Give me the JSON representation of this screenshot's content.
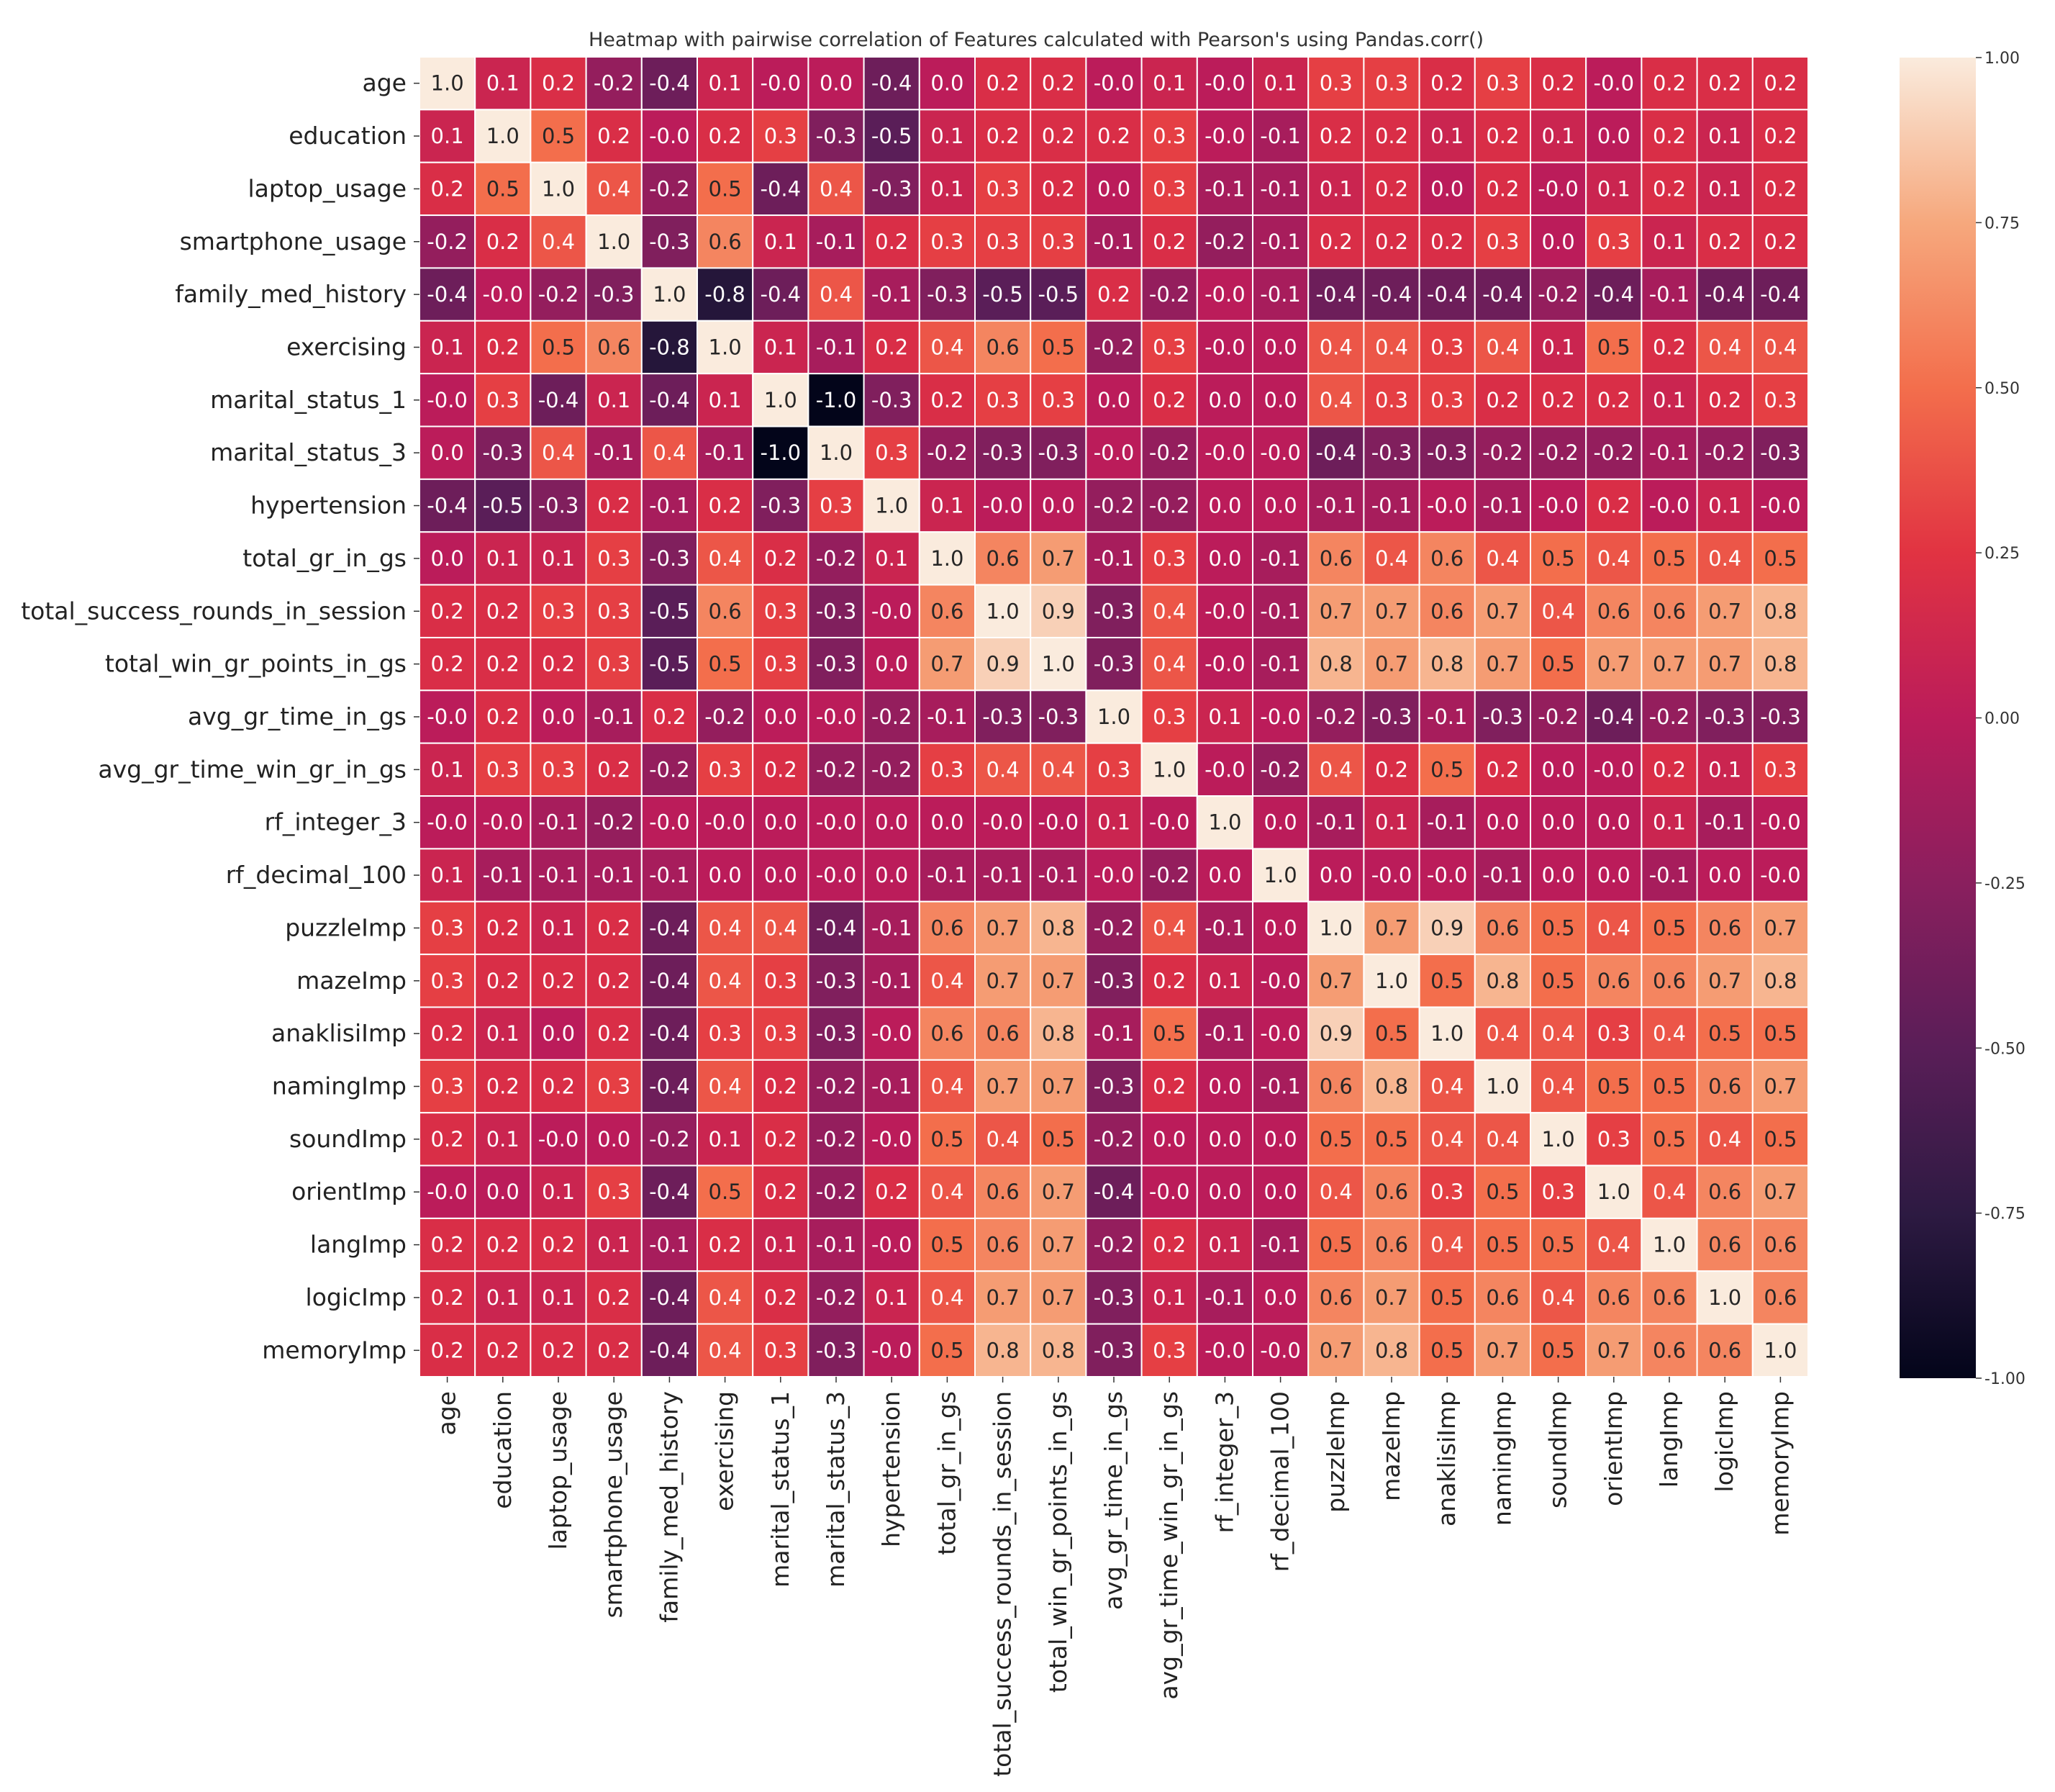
{
  "chart_data": {
    "type": "heatmap",
    "title": "Heatmap with pairwise correlation of Features calculated with Pearson's using Pandas.corr()",
    "xlabel": "",
    "ylabel": "",
    "labels": [
      "age",
      "education",
      "laptop_usage",
      "smartphone_usage",
      "family_med_history",
      "exercising",
      "marital_status_1",
      "marital_status_3",
      "hypertension",
      "total_gr_in_gs",
      "total_success_rounds_in_session",
      "total_win_gr_points_in_gs",
      "avg_gr_time_in_gs",
      "avg_gr_time_win_gr_in_gs",
      "rf_integer_3",
      "rf_decimal_100",
      "puzzleImp",
      "mazeImp",
      "anaklisiImp",
      "namingImp",
      "soundImp",
      "orientImp",
      "langImp",
      "logicImp",
      "memoryImp"
    ],
    "annotations": [
      [
        "1.0",
        "0.1",
        "0.2",
        "-0.2",
        "-0.4",
        "0.1",
        "-0.0",
        "0.0",
        "-0.4",
        "0.0",
        "0.2",
        "0.2",
        "-0.0",
        "0.1",
        "-0.0",
        "0.1",
        "0.3",
        "0.3",
        "0.2",
        "0.3",
        "0.2",
        "-0.0",
        "0.2",
        "0.2",
        "0.2"
      ],
      [
        "0.1",
        "1.0",
        "0.5",
        "0.2",
        "-0.0",
        "0.2",
        "0.3",
        "-0.3",
        "-0.5",
        "0.1",
        "0.2",
        "0.2",
        "0.2",
        "0.3",
        "-0.0",
        "-0.1",
        "0.2",
        "0.2",
        "0.1",
        "0.2",
        "0.1",
        "0.0",
        "0.2",
        "0.1",
        "0.2"
      ],
      [
        "0.2",
        "0.5",
        "1.0",
        "0.4",
        "-0.2",
        "0.5",
        "-0.4",
        "0.4",
        "-0.3",
        "0.1",
        "0.3",
        "0.2",
        "0.0",
        "0.3",
        "-0.1",
        "-0.1",
        "0.1",
        "0.2",
        "0.0",
        "0.2",
        "-0.0",
        "0.1",
        "0.2",
        "0.1",
        "0.2"
      ],
      [
        "-0.2",
        "0.2",
        "0.4",
        "1.0",
        "-0.3",
        "0.6",
        "0.1",
        "-0.1",
        "0.2",
        "0.3",
        "0.3",
        "0.3",
        "-0.1",
        "0.2",
        "-0.2",
        "-0.1",
        "0.2",
        "0.2",
        "0.2",
        "0.3",
        "0.0",
        "0.3",
        "0.1",
        "0.2",
        "0.2"
      ],
      [
        "-0.4",
        "-0.0",
        "-0.2",
        "-0.3",
        "1.0",
        "-0.8",
        "-0.4",
        "0.4",
        "-0.1",
        "-0.3",
        "-0.5",
        "-0.5",
        "0.2",
        "-0.2",
        "-0.0",
        "-0.1",
        "-0.4",
        "-0.4",
        "-0.4",
        "-0.4",
        "-0.2",
        "-0.4",
        "-0.1",
        "-0.4",
        "-0.4"
      ],
      [
        "0.1",
        "0.2",
        "0.5",
        "0.6",
        "-0.8",
        "1.0",
        "0.1",
        "-0.1",
        "0.2",
        "0.4",
        "0.6",
        "0.5",
        "-0.2",
        "0.3",
        "-0.0",
        "0.0",
        "0.4",
        "0.4",
        "0.3",
        "0.4",
        "0.1",
        "0.5",
        "0.2",
        "0.4",
        "0.4"
      ],
      [
        "-0.0",
        "0.3",
        "-0.4",
        "0.1",
        "-0.4",
        "0.1",
        "1.0",
        "-1.0",
        "-0.3",
        "0.2",
        "0.3",
        "0.3",
        "0.0",
        "0.2",
        "0.0",
        "0.0",
        "0.4",
        "0.3",
        "0.3",
        "0.2",
        "0.2",
        "0.2",
        "0.1",
        "0.2",
        "0.3"
      ],
      [
        "0.0",
        "-0.3",
        "0.4",
        "-0.1",
        "0.4",
        "-0.1",
        "-1.0",
        "1.0",
        "0.3",
        "-0.2",
        "-0.3",
        "-0.3",
        "-0.0",
        "-0.2",
        "-0.0",
        "-0.0",
        "-0.4",
        "-0.3",
        "-0.3",
        "-0.2",
        "-0.2",
        "-0.2",
        "-0.1",
        "-0.2",
        "-0.3"
      ],
      [
        "-0.4",
        "-0.5",
        "-0.3",
        "0.2",
        "-0.1",
        "0.2",
        "-0.3",
        "0.3",
        "1.0",
        "0.1",
        "-0.0",
        "0.0",
        "-0.2",
        "-0.2",
        "0.0",
        "0.0",
        "-0.1",
        "-0.1",
        "-0.0",
        "-0.1",
        "-0.0",
        "0.2",
        "-0.0",
        "0.1",
        "-0.0"
      ],
      [
        "0.0",
        "0.1",
        "0.1",
        "0.3",
        "-0.3",
        "0.4",
        "0.2",
        "-0.2",
        "0.1",
        "1.0",
        "0.6",
        "0.7",
        "-0.1",
        "0.3",
        "0.0",
        "-0.1",
        "0.6",
        "0.4",
        "0.6",
        "0.4",
        "0.5",
        "0.4",
        "0.5",
        "0.4",
        "0.5"
      ],
      [
        "0.2",
        "0.2",
        "0.3",
        "0.3",
        "-0.5",
        "0.6",
        "0.3",
        "-0.3",
        "-0.0",
        "0.6",
        "1.0",
        "0.9",
        "-0.3",
        "0.4",
        "-0.0",
        "-0.1",
        "0.7",
        "0.7",
        "0.6",
        "0.7",
        "0.4",
        "0.6",
        "0.6",
        "0.7",
        "0.8"
      ],
      [
        "0.2",
        "0.2",
        "0.2",
        "0.3",
        "-0.5",
        "0.5",
        "0.3",
        "-0.3",
        "0.0",
        "0.7",
        "0.9",
        "1.0",
        "-0.3",
        "0.4",
        "-0.0",
        "-0.1",
        "0.8",
        "0.7",
        "0.8",
        "0.7",
        "0.5",
        "0.7",
        "0.7",
        "0.7",
        "0.8"
      ],
      [
        "-0.0",
        "0.2",
        "0.0",
        "-0.1",
        "0.2",
        "-0.2",
        "0.0",
        "-0.0",
        "-0.2",
        "-0.1",
        "-0.3",
        "-0.3",
        "1.0",
        "0.3",
        "0.1",
        "-0.0",
        "-0.2",
        "-0.3",
        "-0.1",
        "-0.3",
        "-0.2",
        "-0.4",
        "-0.2",
        "-0.3",
        "-0.3"
      ],
      [
        "0.1",
        "0.3",
        "0.3",
        "0.2",
        "-0.2",
        "0.3",
        "0.2",
        "-0.2",
        "-0.2",
        "0.3",
        "0.4",
        "0.4",
        "0.3",
        "1.0",
        "-0.0",
        "-0.2",
        "0.4",
        "0.2",
        "0.5",
        "0.2",
        "0.0",
        "-0.0",
        "0.2",
        "0.1",
        "0.3"
      ],
      [
        "-0.0",
        "-0.0",
        "-0.1",
        "-0.2",
        "-0.0",
        "-0.0",
        "0.0",
        "-0.0",
        "0.0",
        "0.0",
        "-0.0",
        "-0.0",
        "0.1",
        "-0.0",
        "1.0",
        "0.0",
        "-0.1",
        "0.1",
        "-0.1",
        "0.0",
        "0.0",
        "0.0",
        "0.1",
        "-0.1",
        "-0.0"
      ],
      [
        "0.1",
        "-0.1",
        "-0.1",
        "-0.1",
        "-0.1",
        "0.0",
        "0.0",
        "-0.0",
        "0.0",
        "-0.1",
        "-0.1",
        "-0.1",
        "-0.0",
        "-0.2",
        "0.0",
        "1.0",
        "0.0",
        "-0.0",
        "-0.0",
        "-0.1",
        "0.0",
        "0.0",
        "-0.1",
        "0.0",
        "-0.0"
      ],
      [
        "0.3",
        "0.2",
        "0.1",
        "0.2",
        "-0.4",
        "0.4",
        "0.4",
        "-0.4",
        "-0.1",
        "0.6",
        "0.7",
        "0.8",
        "-0.2",
        "0.4",
        "-0.1",
        "0.0",
        "1.0",
        "0.7",
        "0.9",
        "0.6",
        "0.5",
        "0.4",
        "0.5",
        "0.6",
        "0.7"
      ],
      [
        "0.3",
        "0.2",
        "0.2",
        "0.2",
        "-0.4",
        "0.4",
        "0.3",
        "-0.3",
        "-0.1",
        "0.4",
        "0.7",
        "0.7",
        "-0.3",
        "0.2",
        "0.1",
        "-0.0",
        "0.7",
        "1.0",
        "0.5",
        "0.8",
        "0.5",
        "0.6",
        "0.6",
        "0.7",
        "0.8"
      ],
      [
        "0.2",
        "0.1",
        "0.0",
        "0.2",
        "-0.4",
        "0.3",
        "0.3",
        "-0.3",
        "-0.0",
        "0.6",
        "0.6",
        "0.8",
        "-0.1",
        "0.5",
        "-0.1",
        "-0.0",
        "0.9",
        "0.5",
        "1.0",
        "0.4",
        "0.4",
        "0.3",
        "0.4",
        "0.5",
        "0.5"
      ],
      [
        "0.3",
        "0.2",
        "0.2",
        "0.3",
        "-0.4",
        "0.4",
        "0.2",
        "-0.2",
        "-0.1",
        "0.4",
        "0.7",
        "0.7",
        "-0.3",
        "0.2",
        "0.0",
        "-0.1",
        "0.6",
        "0.8",
        "0.4",
        "1.0",
        "0.4",
        "0.5",
        "0.5",
        "0.6",
        "0.7"
      ],
      [
        "0.2",
        "0.1",
        "-0.0",
        "0.0",
        "-0.2",
        "0.1",
        "0.2",
        "-0.2",
        "-0.0",
        "0.5",
        "0.4",
        "0.5",
        "-0.2",
        "0.0",
        "0.0",
        "0.0",
        "0.5",
        "0.5",
        "0.4",
        "0.4",
        "1.0",
        "0.3",
        "0.5",
        "0.4",
        "0.5"
      ],
      [
        "-0.0",
        "0.0",
        "0.1",
        "0.3",
        "-0.4",
        "0.5",
        "0.2",
        "-0.2",
        "0.2",
        "0.4",
        "0.6",
        "0.7",
        "-0.4",
        "-0.0",
        "0.0",
        "0.0",
        "0.4",
        "0.6",
        "0.3",
        "0.5",
        "0.3",
        "1.0",
        "0.4",
        "0.6",
        "0.7"
      ],
      [
        "0.2",
        "0.2",
        "0.2",
        "0.1",
        "-0.1",
        "0.2",
        "0.1",
        "-0.1",
        "-0.0",
        "0.5",
        "0.6",
        "0.7",
        "-0.2",
        "0.2",
        "0.1",
        "-0.1",
        "0.5",
        "0.6",
        "0.4",
        "0.5",
        "0.5",
        "0.4",
        "1.0",
        "0.6",
        "0.6"
      ],
      [
        "0.2",
        "0.1",
        "0.1",
        "0.2",
        "-0.4",
        "0.4",
        "0.2",
        "-0.2",
        "0.1",
        "0.4",
        "0.7",
        "0.7",
        "-0.3",
        "0.1",
        "-0.1",
        "0.0",
        "0.6",
        "0.7",
        "0.5",
        "0.6",
        "0.4",
        "0.6",
        "0.6",
        "1.0",
        "0.6"
      ],
      [
        "0.2",
        "0.2",
        "0.2",
        "0.2",
        "-0.4",
        "0.4",
        "0.3",
        "-0.3",
        "-0.0",
        "0.5",
        "0.8",
        "0.8",
        "-0.3",
        "0.3",
        "-0.0",
        "-0.0",
        "0.7",
        "0.8",
        "0.5",
        "0.7",
        "0.5",
        "0.7",
        "0.6",
        "0.6",
        "1.0"
      ]
    ],
    "colorbar": {
      "vmin": -1.0,
      "vmax": 1.0,
      "ticks": [
        "1.00",
        "0.75",
        "0.50",
        "0.25",
        "0.00",
        "-0.25",
        "-0.50",
        "-0.75",
        "-1.00"
      ],
      "tick_values": [
        1.0,
        0.75,
        0.5,
        0.25,
        0.0,
        -0.25,
        -0.5,
        -0.75,
        -1.0
      ],
      "colormap": "rocket",
      "stops": [
        "#03051a",
        "#2d1a42",
        "#5a1e58",
        "#8a1f5e",
        "#bb1c5a",
        "#e13342",
        "#f36e4c",
        "#f6a87d",
        "#faebdd"
      ]
    },
    "grid": false,
    "legend": "right"
  }
}
